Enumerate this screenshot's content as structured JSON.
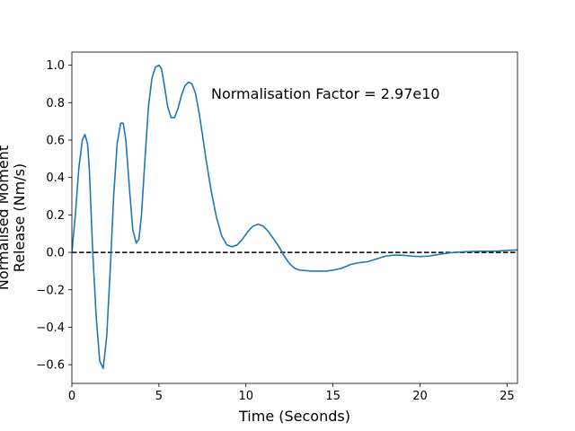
{
  "chart_data": {
    "type": "line",
    "title": "",
    "xlabel": "Time (Seconds)",
    "ylabel_lines": [
      "Normalised Moment",
      "Release (Nm/s)"
    ],
    "xlim": [
      0,
      25.6
    ],
    "ylim": [
      -0.7,
      1.07
    ],
    "xticks": [
      0,
      5,
      10,
      15,
      20,
      25
    ],
    "xtick_labels": [
      "0",
      "5",
      "10",
      "15",
      "20",
      "25"
    ],
    "yticks": [
      -0.6,
      -0.4,
      -0.2,
      0.0,
      0.2,
      0.4,
      0.6,
      0.8,
      1.0
    ],
    "ytick_labels": [
      "−0.6",
      "−0.4",
      "−0.2",
      "0.0",
      "0.2",
      "0.4",
      "0.6",
      "0.8",
      "1.0"
    ],
    "grid": false,
    "legend": "none",
    "annotation": {
      "text": "Normalisation Factor = 2.97e10",
      "x": 8.0,
      "y": 0.82
    },
    "reference_line": {
      "y": 0,
      "style": "dashed",
      "color": "#000000"
    },
    "series": [
      {
        "color": "#1f77b4",
        "x": [
          0,
          0.2,
          0.4,
          0.6,
          0.75,
          0.9,
          1.0,
          1.2,
          1.4,
          1.6,
          1.8,
          2.0,
          2.2,
          2.4,
          2.6,
          2.8,
          2.95,
          3.1,
          3.3,
          3.5,
          3.7,
          3.85,
          4.0,
          4.2,
          4.4,
          4.6,
          4.8,
          5.0,
          5.15,
          5.3,
          5.5,
          5.7,
          5.9,
          6.1,
          6.3,
          6.5,
          6.7,
          6.9,
          7.1,
          7.3,
          7.5,
          7.7,
          8.0,
          8.3,
          8.6,
          8.9,
          9.2,
          9.5,
          9.8,
          10.1,
          10.4,
          10.7,
          11.0,
          11.3,
          11.6,
          11.9,
          12.2,
          12.5,
          12.8,
          13.1,
          13.4,
          13.8,
          14.2,
          14.6,
          15.0,
          15.5,
          16.0,
          16.5,
          17.0,
          17.5,
          18.0,
          18.5,
          19.0,
          19.5,
          20.0,
          20.5,
          21.0,
          21.5,
          22.0,
          22.5,
          23.0,
          23.5,
          24.0,
          24.5,
          25.0,
          25.6
        ],
        "y": [
          0.0,
          0.2,
          0.45,
          0.6,
          0.63,
          0.58,
          0.45,
          0.0,
          -0.35,
          -0.58,
          -0.62,
          -0.45,
          -0.1,
          0.3,
          0.58,
          0.69,
          0.69,
          0.6,
          0.35,
          0.12,
          0.05,
          0.07,
          0.2,
          0.5,
          0.78,
          0.93,
          0.99,
          1.0,
          0.98,
          0.9,
          0.78,
          0.72,
          0.72,
          0.77,
          0.84,
          0.89,
          0.91,
          0.9,
          0.85,
          0.75,
          0.63,
          0.5,
          0.33,
          0.19,
          0.09,
          0.04,
          0.03,
          0.04,
          0.07,
          0.11,
          0.14,
          0.15,
          0.14,
          0.11,
          0.07,
          0.03,
          -0.02,
          -0.06,
          -0.085,
          -0.095,
          -0.097,
          -0.1,
          -0.1,
          -0.1,
          -0.095,
          -0.085,
          -0.065,
          -0.055,
          -0.05,
          -0.035,
          -0.02,
          -0.015,
          -0.015,
          -0.02,
          -0.022,
          -0.02,
          -0.012,
          -0.005,
          0.0,
          0.003,
          0.005,
          0.006,
          0.006,
          0.007,
          0.01,
          0.013
        ]
      }
    ]
  }
}
